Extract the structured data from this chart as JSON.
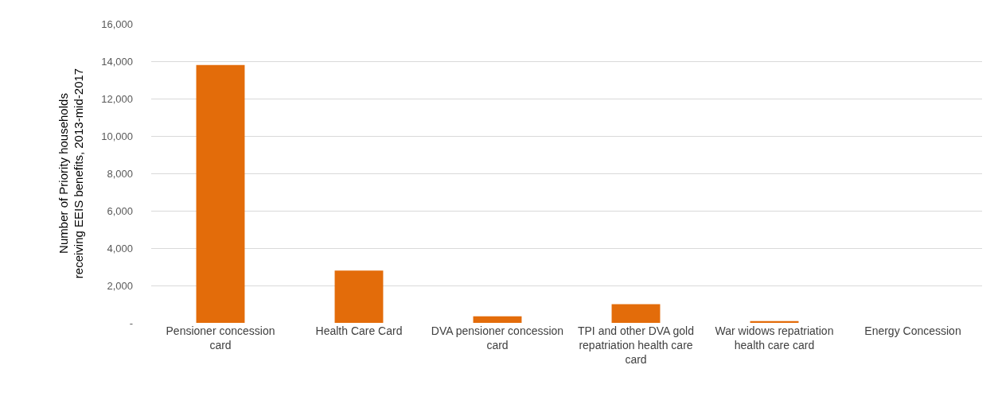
{
  "chart_data": {
    "type": "bar",
    "ylabel": "Number of Priority households receiving EEIS benefits, 2013-mid-2017",
    "categories": [
      "Pensioner concession card",
      "Health Care Card",
      "DVA pensioner concession card",
      "TPI and other DVA gold repatriation health care card",
      "War widows repatriation health care card",
      "Energy Concession"
    ],
    "values": [
      13800,
      2800,
      350,
      1000,
      100,
      0
    ],
    "color": "#e36c0a",
    "ylim": [
      0,
      16000
    ],
    "yticks": [
      {
        "value": 0,
        "label": "-"
      },
      {
        "value": 2000,
        "label": "2,000"
      },
      {
        "value": 4000,
        "label": "4,000"
      },
      {
        "value": 6000,
        "label": "6,000"
      },
      {
        "value": 8000,
        "label": "8,000"
      },
      {
        "value": 10000,
        "label": "10,000"
      },
      {
        "value": 12000,
        "label": "12,000"
      },
      {
        "value": 14000,
        "label": "14,000"
      },
      {
        "value": 16000,
        "label": "16,000"
      }
    ],
    "grid": "y"
  }
}
